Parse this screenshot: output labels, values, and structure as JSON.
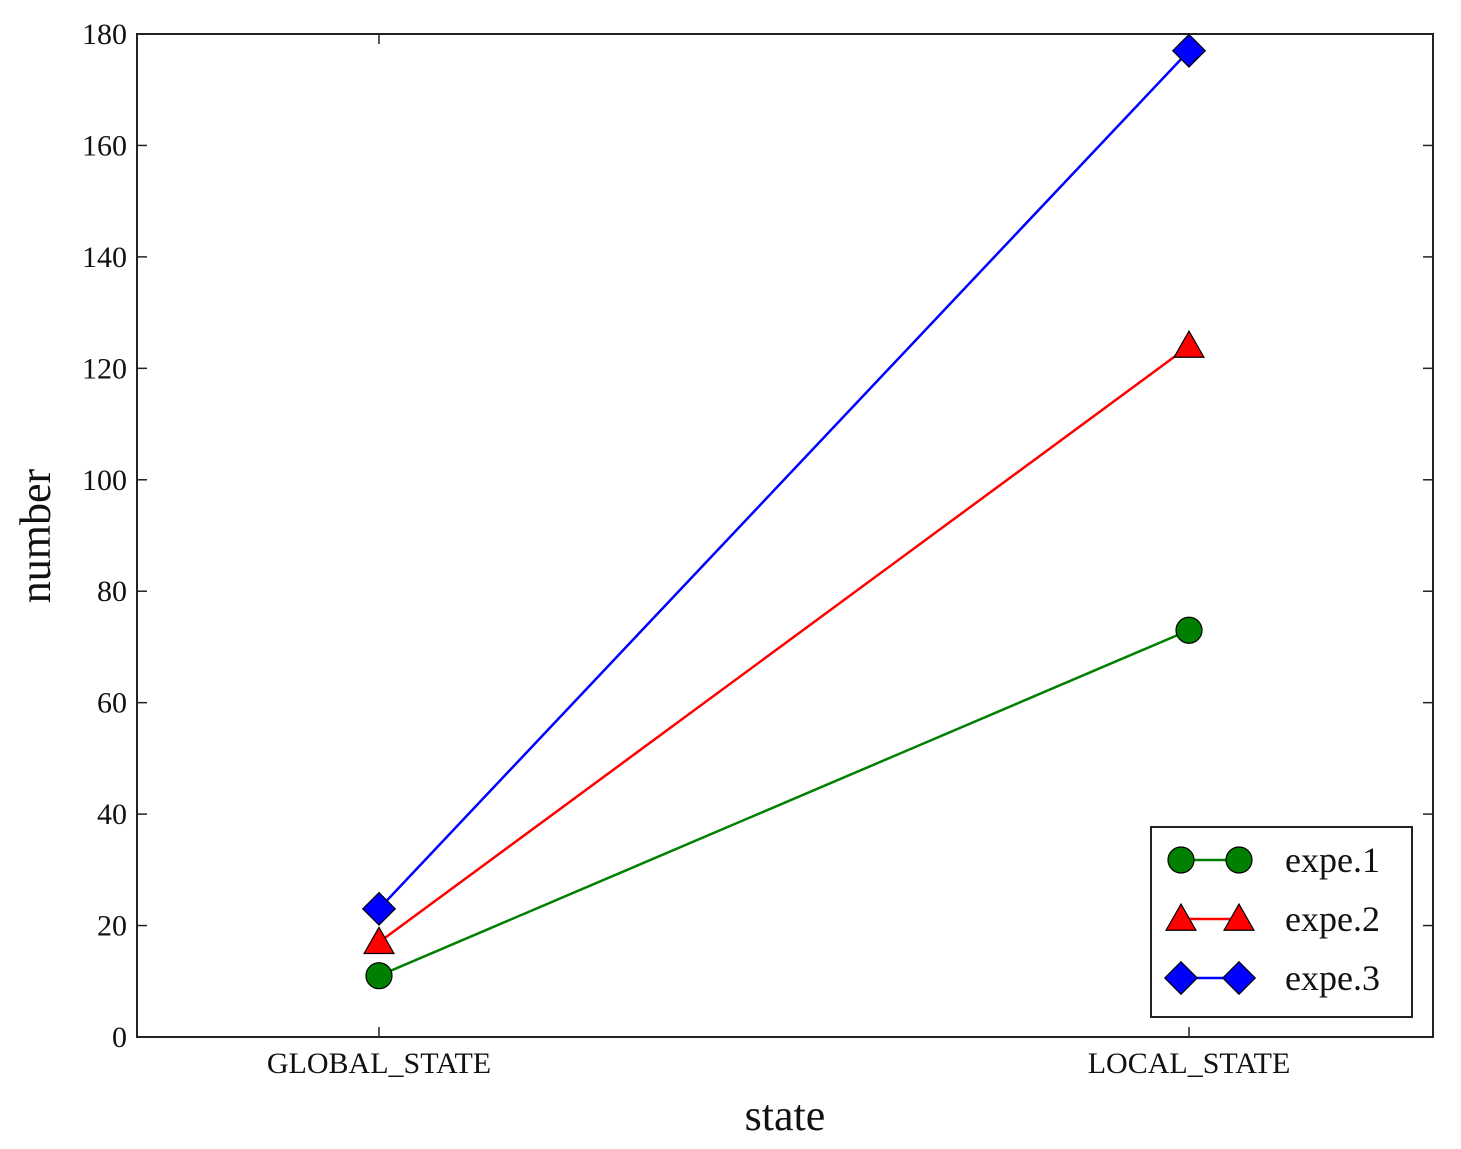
{
  "chart_data": {
    "type": "line",
    "title": "",
    "xlabel": "state",
    "ylabel": "number",
    "categories": [
      "GLOBAL_STATE",
      "LOCAL_STATE"
    ],
    "ylim": [
      0,
      180
    ],
    "yticks": [
      0,
      20,
      40,
      60,
      80,
      100,
      120,
      140,
      160,
      180
    ],
    "grid": false,
    "legend_position": "bottom-right",
    "series": [
      {
        "name": "expe.1",
        "values": [
          11,
          73
        ],
        "color": "#008000",
        "marker": "circle"
      },
      {
        "name": "expe.2",
        "values": [
          17,
          124
        ],
        "color": "#ff0000",
        "marker": "triangle"
      },
      {
        "name": "expe.3",
        "values": [
          23,
          177
        ],
        "color": "#0000ff",
        "marker": "diamond"
      }
    ]
  }
}
